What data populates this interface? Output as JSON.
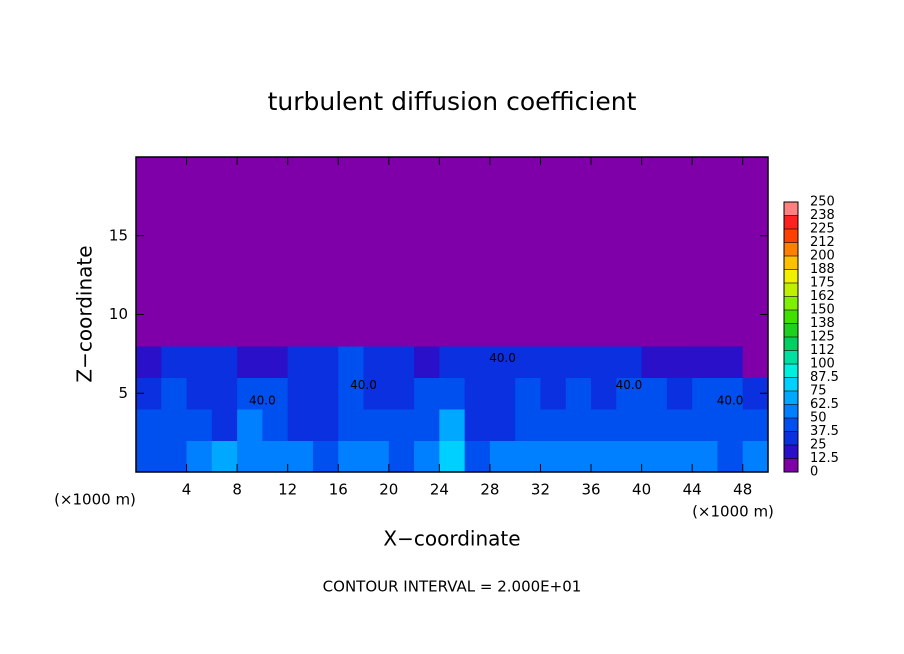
{
  "chart_data": {
    "type": "heatmap",
    "title": "turbulent diffusion coefficient",
    "xlabel": "X−coordinate",
    "ylabel": "Z−coordinate",
    "x_unit_left": "(×1000 m)",
    "x_unit_right": "(×1000 m)",
    "footer": "CONTOUR INTERVAL = 2.000E+01",
    "xlim": [
      0,
      50
    ],
    "ylim": [
      0,
      20
    ],
    "xticks": [
      4,
      8,
      12,
      16,
      20,
      24,
      28,
      32,
      36,
      40,
      44,
      48
    ],
    "yticks": [
      5,
      10,
      15
    ],
    "xbins": [
      0,
      2,
      4,
      6,
      8,
      10,
      12,
      14,
      16,
      18,
      20,
      22,
      24,
      26,
      28,
      30,
      32,
      34,
      36,
      38,
      40,
      42,
      44,
      46,
      48,
      50
    ],
    "ybins": [
      0,
      2,
      4,
      6,
      8,
      10,
      12,
      14,
      16,
      18,
      20
    ],
    "z": [
      [
        45,
        40,
        55,
        70,
        60,
        50,
        60,
        45,
        55,
        50,
        45,
        50,
        80,
        45,
        50,
        55,
        60,
        55,
        60,
        55,
        50,
        55,
        50,
        45,
        50
      ],
      [
        40,
        45,
        40,
        35,
        50,
        45,
        35,
        35,
        40,
        45,
        40,
        45,
        70,
        35,
        35,
        40,
        45,
        45,
        40,
        40,
        45,
        40,
        45,
        40,
        40
      ],
      [
        35,
        40,
        35,
        30,
        45,
        40,
        30,
        35,
        40,
        35,
        30,
        40,
        45,
        35,
        35,
        40,
        35,
        40,
        35,
        40,
        40,
        35,
        40,
        40,
        35
      ],
      [
        20,
        30,
        35,
        25,
        20,
        15,
        25,
        35,
        40,
        35,
        25,
        15,
        30,
        35,
        35,
        30,
        25,
        30,
        35,
        30,
        20,
        15,
        20,
        15,
        10
      ],
      [
        0,
        0,
        0,
        0,
        0,
        0,
        0,
        0,
        0,
        5,
        0,
        0,
        0,
        0,
        0,
        0,
        0,
        0,
        0,
        0,
        0,
        0,
        0,
        0,
        0
      ],
      [
        0,
        0,
        0,
        0,
        0,
        0,
        0,
        0,
        0,
        0,
        0,
        0,
        0,
        0,
        0,
        0,
        0,
        0,
        0,
        0,
        0,
        0,
        0,
        0,
        0
      ],
      [
        0,
        0,
        0,
        0,
        0,
        0,
        0,
        0,
        0,
        0,
        0,
        0,
        0,
        0,
        0,
        0,
        0,
        0,
        0,
        0,
        0,
        0,
        0,
        0,
        0
      ],
      [
        0,
        0,
        0,
        0,
        0,
        0,
        0,
        0,
        0,
        0,
        0,
        0,
        0,
        0,
        0,
        0,
        0,
        0,
        0,
        0,
        0,
        0,
        0,
        0,
        0
      ],
      [
        0,
        0,
        0,
        0,
        0,
        0,
        0,
        0,
        0,
        0,
        0,
        0,
        0,
        0,
        0,
        0,
        0,
        0,
        0,
        0,
        0,
        0,
        0,
        0,
        0
      ],
      [
        0,
        0,
        0,
        0,
        0,
        0,
        0,
        0,
        0,
        0,
        0,
        0,
        0,
        0,
        0,
        0,
        0,
        0,
        0,
        0,
        0,
        0,
        0,
        0,
        0
      ]
    ],
    "colorbar_levels": [
      0,
      12.5,
      25,
      37.5,
      50,
      62.5,
      75,
      87.5,
      100,
      112,
      125,
      138,
      150,
      162,
      175,
      188,
      200,
      212,
      225,
      238,
      250
    ],
    "colorbar_colors": [
      "#7f00a8",
      "#2a10c8",
      "#0a30e0",
      "#0050f0",
      "#0080ff",
      "#00a8ff",
      "#00d0ff",
      "#00f0e0",
      "#00e0a0",
      "#00d060",
      "#20d020",
      "#40e000",
      "#80f000",
      "#c0f000",
      "#f0f000",
      "#ffc000",
      "#ff8000",
      "#ff4000",
      "#ff2020",
      "#ff8080"
    ],
    "contour_labels": [
      {
        "text": "40.0",
        "x": 10,
        "z": 4.5
      },
      {
        "text": "40.0",
        "x": 18,
        "z": 5.5
      },
      {
        "text": "40.0",
        "x": 29,
        "z": 7.2
      },
      {
        "text": "40.0",
        "x": 39,
        "z": 5.5
      },
      {
        "text": "40.0",
        "x": 47,
        "z": 4.5
      }
    ]
  }
}
